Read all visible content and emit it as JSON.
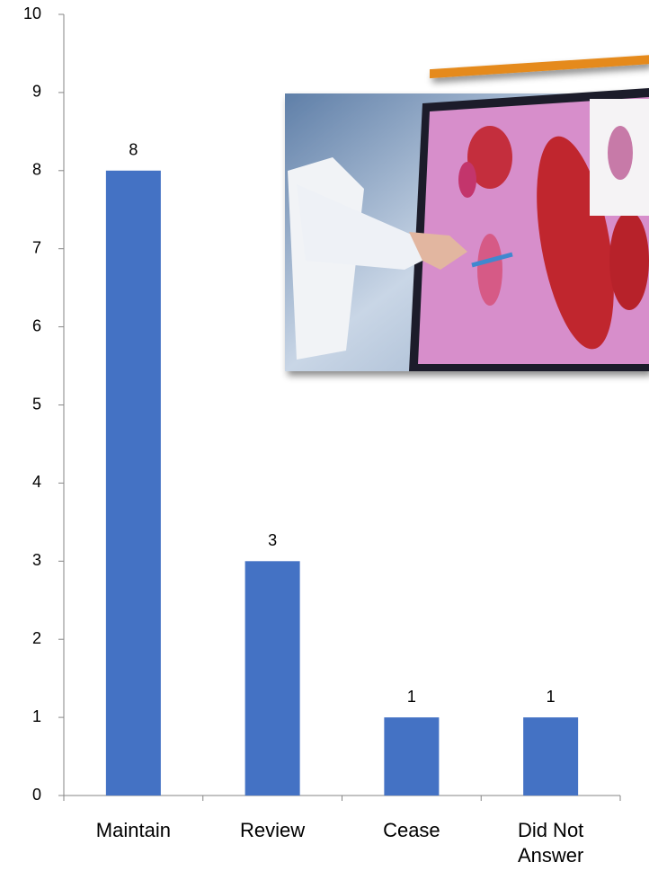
{
  "chart_data": {
    "type": "bar",
    "categories": [
      "Maintain",
      "Review",
      "Cease",
      "Did Not Answer"
    ],
    "values": [
      8,
      3,
      1,
      1
    ],
    "color": "#4472c4",
    "ylim": [
      0,
      10
    ],
    "yticks": [
      0,
      1,
      2,
      3,
      4,
      5,
      6,
      7,
      8,
      9,
      10
    ],
    "grid": false
  }
}
